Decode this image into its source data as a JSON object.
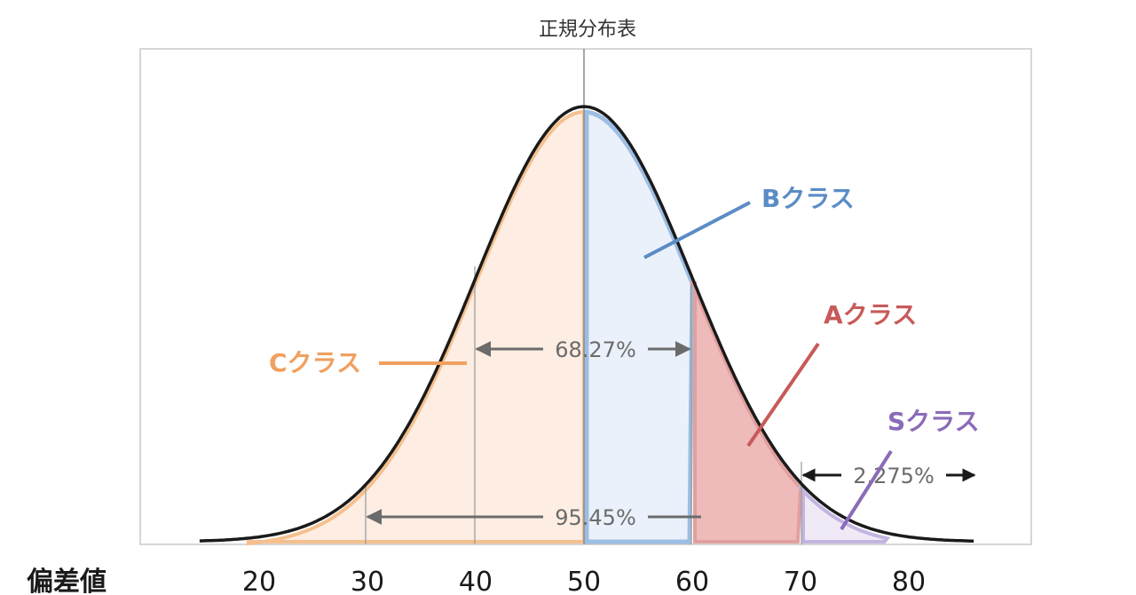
{
  "title": "正規分布表",
  "axis_label": "偏差値",
  "ticks": [
    "20",
    "30",
    "40",
    "50",
    "60",
    "70",
    "80"
  ],
  "tick_values": [
    20,
    30,
    40,
    50,
    60,
    70,
    80
  ],
  "annotations": {
    "one_sigma": "68.27%",
    "two_sigma": "95.45%",
    "tail": "2.275%"
  },
  "classes": {
    "c": {
      "label": "Cクラス",
      "range": [
        30,
        50
      ],
      "color": "#f0a060"
    },
    "b": {
      "label": "Bクラス",
      "range": [
        50,
        60
      ],
      "color": "#5b8cc6"
    },
    "a": {
      "label": "Aクラス",
      "range": [
        60,
        70
      ],
      "color": "#c85a5a"
    },
    "s": {
      "label": "Sクラス",
      "range": [
        70,
        80
      ],
      "color": "#8a6bb8"
    }
  },
  "distribution": {
    "mean": 50,
    "sd": 10
  }
}
